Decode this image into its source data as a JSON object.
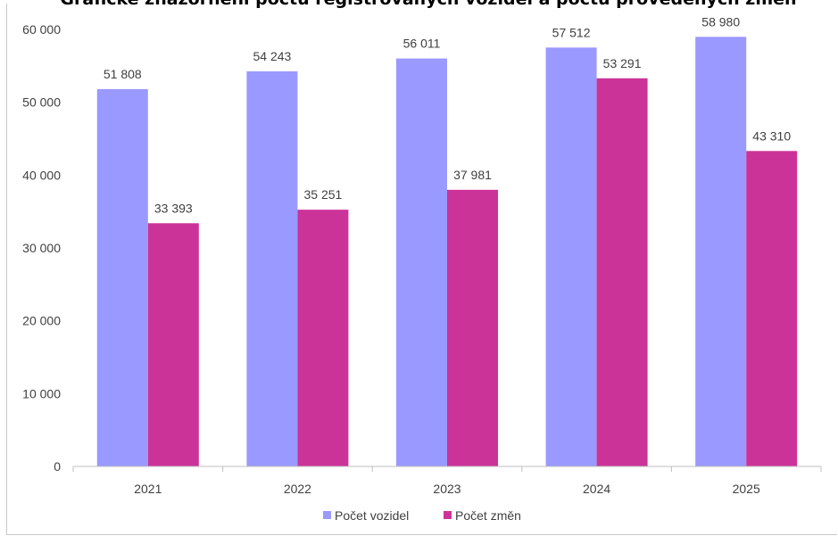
{
  "chart_data": {
    "type": "bar",
    "title": "Grafické znázornění počtu registrovaných vozidel a počtu provedených změn",
    "categories": [
      "2021",
      "2022",
      "2023",
      "2024",
      "2025"
    ],
    "series": [
      {
        "name": "Počet vozidel",
        "color": "#9999ff",
        "values": [
          51808,
          54243,
          56011,
          57512,
          58980
        ],
        "labels": [
          "51 808",
          "54 243",
          "56 011",
          "57 512",
          "58 980"
        ]
      },
      {
        "name": "Počet změn",
        "color": "#cc3399",
        "values": [
          33393,
          35251,
          37981,
          53291,
          43310
        ],
        "labels": [
          "33 393",
          "35 251",
          "37 981",
          "53 291",
          "43 310"
        ]
      }
    ],
    "ylim": [
      0,
      60000
    ],
    "yticks": [
      0,
      10000,
      20000,
      30000,
      40000,
      50000,
      60000
    ],
    "ytick_labels": [
      "0",
      "10 000",
      "20 000",
      "30 000",
      "40 000",
      "50 000",
      "60 000"
    ],
    "xlabel": "",
    "ylabel": "",
    "grid": false,
    "legend": "bottom"
  }
}
